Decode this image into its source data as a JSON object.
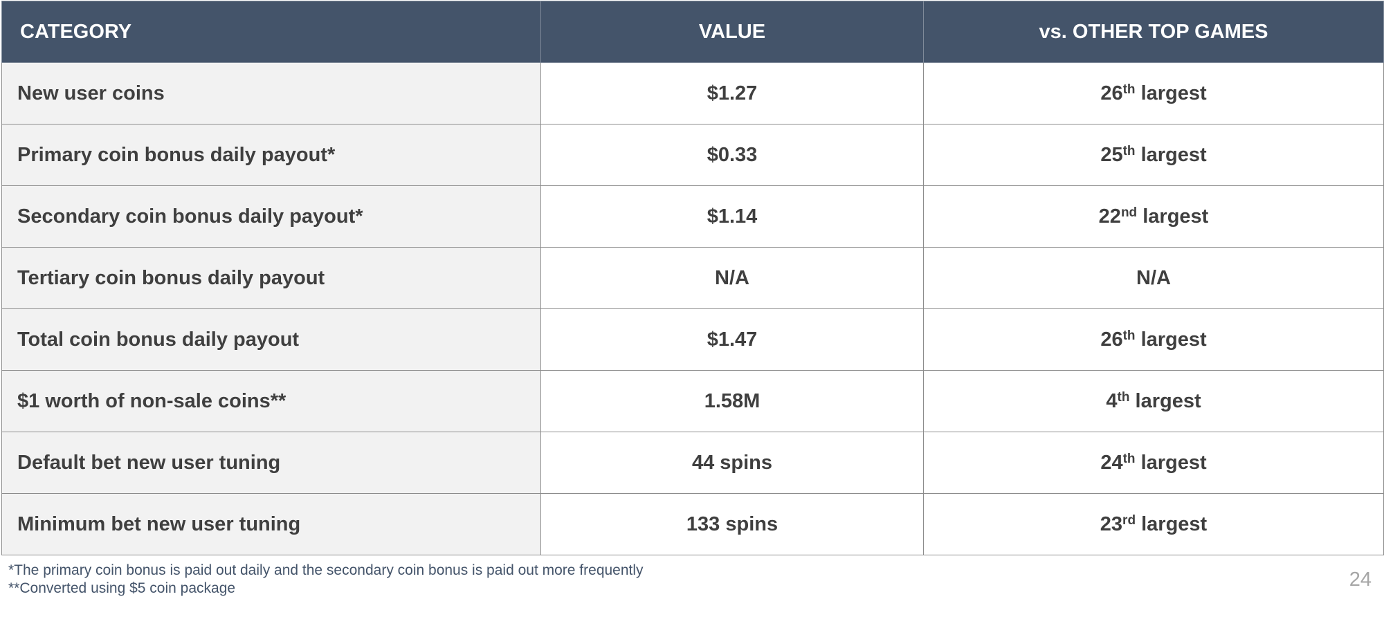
{
  "table": {
    "headers": {
      "category": "CATEGORY",
      "value": "VALUE",
      "comparison": "vs. OTHER TOP GAMES"
    },
    "rows": [
      {
        "category": "New user coins",
        "value": "$1.27",
        "rank": "26",
        "suffix": "th",
        "rank_label": "largest"
      },
      {
        "category": "Primary coin bonus daily payout*",
        "value": "$0.33",
        "rank": "25",
        "suffix": "th",
        "rank_label": "largest"
      },
      {
        "category": "Secondary coin bonus daily payout*",
        "value": "$1.14",
        "rank": "22",
        "suffix": "nd",
        "rank_label": "largest"
      },
      {
        "category": "Tertiary coin bonus daily payout",
        "value": "N/A",
        "rank": "N/A",
        "suffix": "",
        "rank_label": ""
      },
      {
        "category": "Total coin bonus daily payout",
        "value": "$1.47",
        "rank": "26",
        "suffix": "th",
        "rank_label": "largest"
      },
      {
        "category": "$1 worth of non-sale coins**",
        "value": "1.58M",
        "rank": "4",
        "suffix": "th",
        "rank_label": "largest"
      },
      {
        "category": "Default bet new user tuning",
        "value": "44 spins",
        "rank": "24",
        "suffix": "th",
        "rank_label": "largest"
      },
      {
        "category": "Minimum bet new user tuning",
        "value": "133 spins",
        "rank": "23",
        "suffix": "rd",
        "rank_label": "largest"
      }
    ]
  },
  "footnotes": [
    "*The primary coin bonus is paid out daily and the secondary coin bonus is paid out more frequently",
    "**Converted using $5 coin package"
  ],
  "page_number": "24",
  "colors": {
    "header_bg": "#44546a",
    "label_col_bg": "#f2f2f2",
    "text": "#3f3f3f",
    "footnote_text": "#44546a",
    "page_number": "#a6a6a6"
  }
}
